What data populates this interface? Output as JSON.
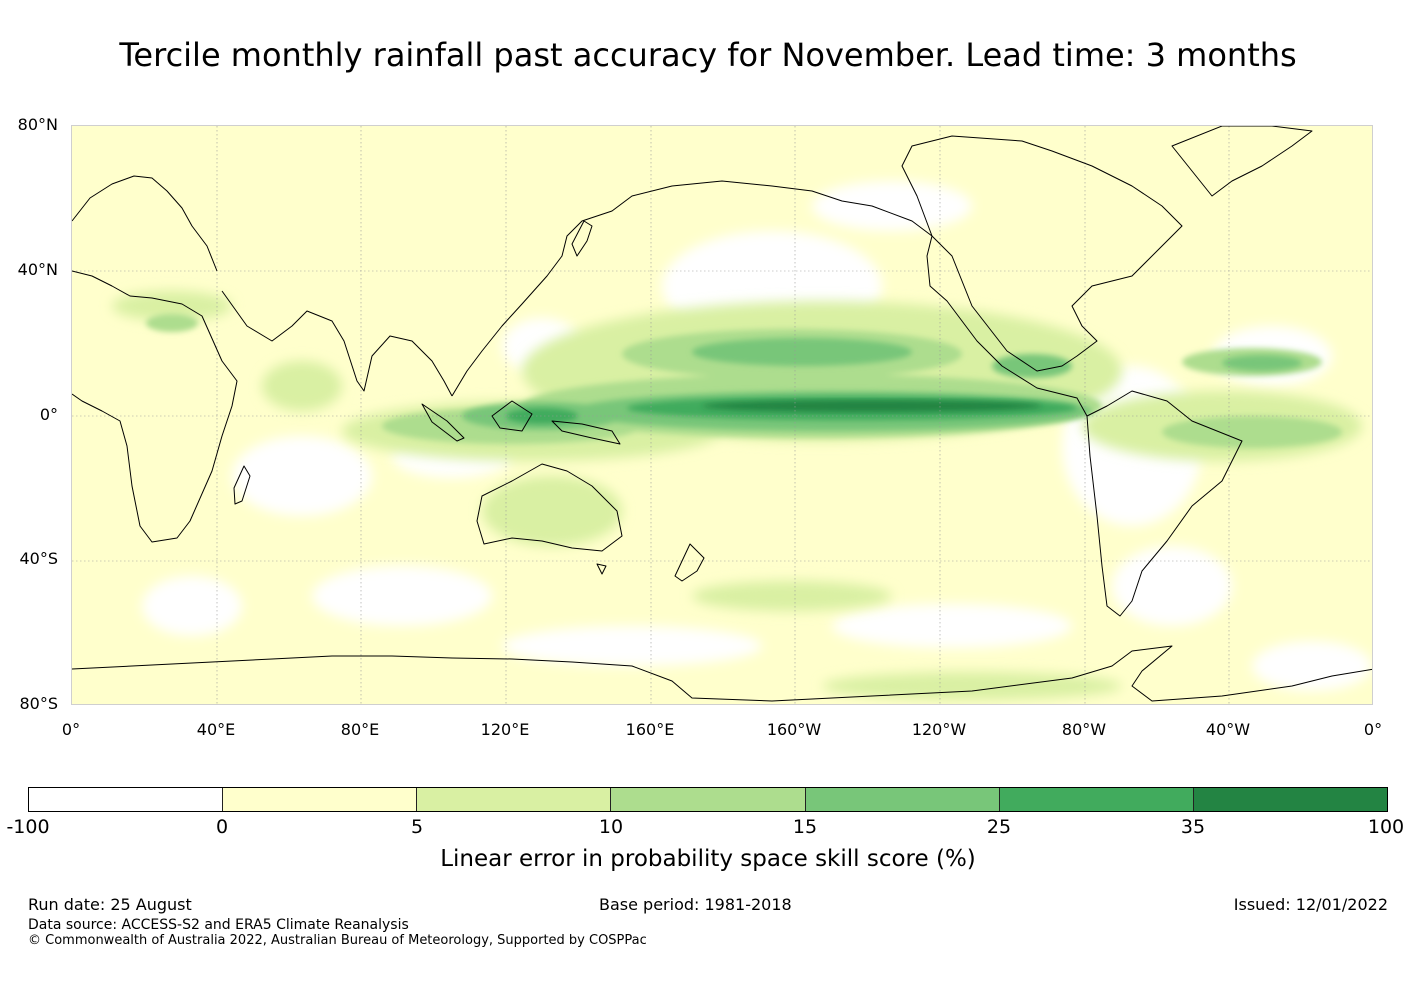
{
  "title": "Tercile monthly rainfall past accuracy for November. Lead time: 3 months",
  "map": {
    "latitude_labels": [
      "80°N",
      "40°N",
      "0°",
      "40°S",
      "80°S"
    ],
    "longitude_labels": [
      "0°",
      "40°E",
      "80°E",
      "120°E",
      "160°E",
      "160°W",
      "120°W",
      "80°W",
      "40°W",
      "0°"
    ],
    "projection": "equirectangular, Pacific-centred (0° to 360°)"
  },
  "colorbar": {
    "title": "Linear error in probability space skill score (%)",
    "ticks": [
      "-100",
      "0",
      "5",
      "10",
      "15",
      "25",
      "35",
      "100"
    ],
    "colors": [
      "#ffffff",
      "#ffffcc",
      "#d9f0a3",
      "#addd8e",
      "#78c679",
      "#41ab5d",
      "#238443"
    ]
  },
  "footer": {
    "run_date": "Run date: 25 August",
    "base_period": "Base period: 1981-2018",
    "issued": "Issued: 12/01/2022",
    "data_source": "Data source: ACCESS-S2 and ERA5 Climate Reanalysis",
    "copyright": "© Commonwealth of Australia 2022, Australian Bureau of Meteorology, Supported by COSPPac"
  }
}
